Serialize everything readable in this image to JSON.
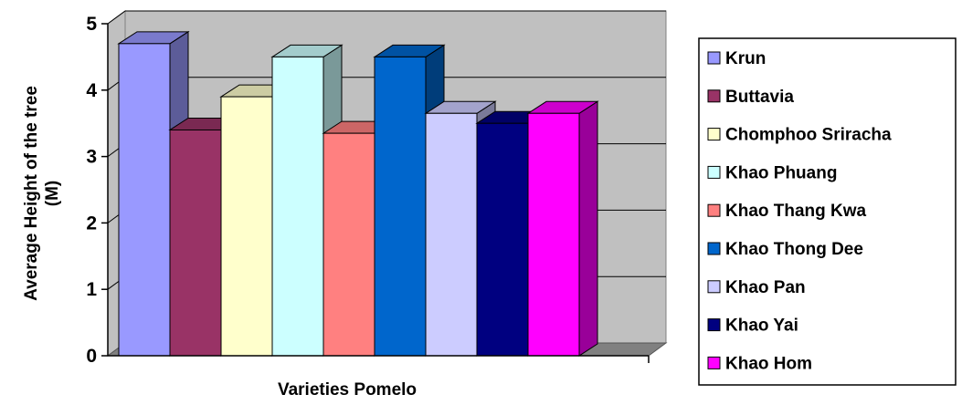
{
  "chart_data": {
    "type": "bar",
    "title": "",
    "xlabel": "Varieties Pomelo",
    "ylabel_line1": "Average Height of the tree",
    "ylabel_line2": "(M)",
    "ylim": [
      0,
      5
    ],
    "yticks": [
      "0",
      "1",
      "2",
      "3",
      "4",
      "5"
    ],
    "grid": true,
    "legend_position": "right",
    "series": [
      {
        "name": "Krun",
        "value": 4.7,
        "color": "#9999FF"
      },
      {
        "name": "Buttavia",
        "value": 3.4,
        "color": "#993366"
      },
      {
        "name": "Chomphoo Sriracha",
        "value": 3.9,
        "color": "#FFFFCC"
      },
      {
        "name": "Khao Phuang",
        "value": 4.5,
        "color": "#CCFFFF"
      },
      {
        "name": "Khao Thang Kwa",
        "value": 3.35,
        "color": "#FF8080"
      },
      {
        "name": "Khao Thong Dee",
        "value": 4.5,
        "color": "#0066CC"
      },
      {
        "name": "Khao Pan",
        "value": 3.65,
        "color": "#CCCCFF"
      },
      {
        "name": "Khao Yai",
        "value": 3.5,
        "color": "#000080"
      },
      {
        "name": "Khao Hom",
        "value": 3.65,
        "color": "#FF00FF"
      }
    ]
  }
}
